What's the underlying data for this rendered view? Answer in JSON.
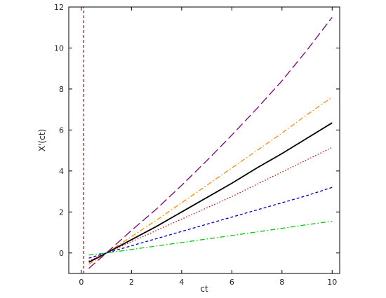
{
  "chart_data": {
    "type": "line",
    "xlabel": "ct",
    "ylabel": "X'(ct)",
    "xlim": [
      -0.5,
      10.3
    ],
    "ylim": [
      -1.0,
      12.0
    ],
    "x_ticks": [
      0,
      2,
      4,
      6,
      8,
      10
    ],
    "y_ticks": [
      0,
      2,
      4,
      6,
      8,
      10,
      12
    ],
    "grid": false,
    "series": [
      {
        "color": "#800080",
        "dash": "long-dash",
        "x": [
          0.3,
          1,
          2,
          3,
          4,
          5,
          6,
          7,
          8,
          9,
          10
        ],
        "y": [
          -0.75,
          0.0,
          1.1,
          2.15,
          3.3,
          4.5,
          5.75,
          7.05,
          8.4,
          9.9,
          11.5
        ]
      },
      {
        "color": "#ff8c00",
        "dash": "dash-dot",
        "x": [
          0.3,
          1,
          2,
          3,
          4,
          5,
          6,
          7,
          8,
          9,
          10
        ],
        "y": [
          -0.55,
          0.0,
          0.8,
          1.6,
          2.45,
          3.3,
          4.15,
          5.0,
          5.85,
          6.75,
          7.6
        ]
      },
      {
        "color": "#000000",
        "dash": "solid",
        "x": [
          0.3,
          1,
          2,
          3,
          4,
          5,
          6,
          7,
          8,
          9,
          10
        ],
        "y": [
          -0.45,
          0.0,
          0.65,
          1.3,
          2.0,
          2.7,
          3.4,
          4.15,
          4.85,
          5.6,
          6.35
        ]
      },
      {
        "color": "#cc0000",
        "dash": "dotted",
        "x": [
          0.3,
          1,
          2,
          3,
          4,
          5,
          6,
          7,
          8,
          9,
          10
        ],
        "y": [
          -0.4,
          0.0,
          0.55,
          1.1,
          1.65,
          2.2,
          2.75,
          3.35,
          3.95,
          4.55,
          5.15
        ]
      },
      {
        "color": "#0000cc",
        "dash": "dashed",
        "x": [
          0.3,
          1,
          2,
          3,
          4,
          5,
          6,
          7,
          8,
          9,
          10
        ],
        "y": [
          -0.25,
          0.0,
          0.35,
          0.7,
          1.05,
          1.4,
          1.75,
          2.1,
          2.45,
          2.8,
          3.2
        ]
      },
      {
        "color": "#00cc00",
        "dash": "dash-dot",
        "x": [
          0.3,
          1,
          2,
          3,
          4,
          5,
          6,
          7,
          8,
          9,
          10
        ],
        "y": [
          -0.1,
          0.0,
          0.17,
          0.34,
          0.51,
          0.68,
          0.85,
          1.03,
          1.2,
          1.38,
          1.55
        ]
      },
      {
        "color": "#cc0000",
        "dash": "dashed",
        "x": [
          0.1,
          0.1
        ],
        "y": [
          -1.0,
          12.0
        ]
      }
    ]
  }
}
